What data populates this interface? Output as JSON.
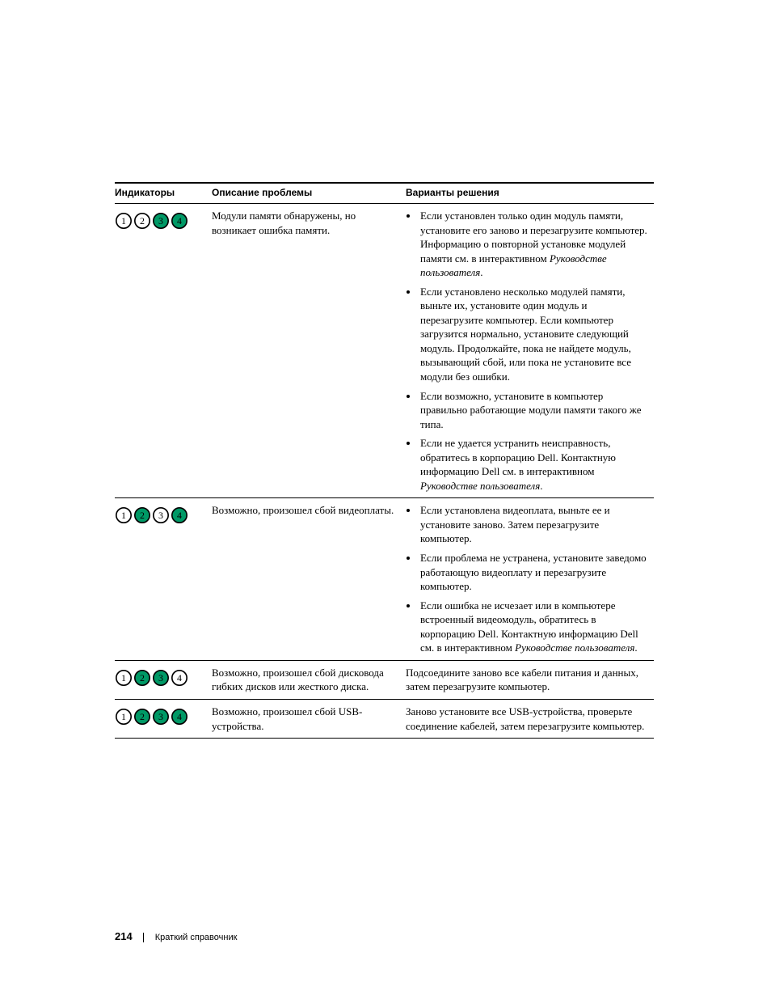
{
  "headers": {
    "indicators": "Индикаторы",
    "description": "Описание проблемы",
    "solutions": "Варианты решения"
  },
  "led_style": {
    "on_fill": "#009966",
    "on_text": "#000000",
    "off_fill": "#ffffff",
    "off_text": "#000000",
    "stroke": "#000000",
    "stroke_width": 1.8,
    "radius": 10,
    "font_family": "Georgia, serif",
    "font_size": 13
  },
  "rows": [
    {
      "leds": [
        false,
        false,
        true,
        true
      ],
      "description": "Модули памяти обнаружены, но возникает ошибка памяти.",
      "solutions": [
        {
          "runs": [
            {
              "t": "Если установлен только один модуль памяти, установите его заново и перезагрузите компьютер. Информацию о повторной установке модулей памяти см. в интерактивном "
            },
            {
              "t": "Руководстве пользователя",
              "i": true
            },
            {
              "t": "."
            }
          ]
        },
        {
          "runs": [
            {
              "t": "Если установлено несколько модулей памяти, выньте их, установите один модуль и перезагрузите компьютер. Если компьютер загрузится нормально, установите следующий модуль. Продолжайте, пока не найдете модуль, вызывающий сбой, или пока не установите все модули без ошибки."
            }
          ]
        },
        {
          "runs": [
            {
              "t": "Если возможно, установите в компьютер правильно работающие модули памяти такого же типа."
            }
          ]
        },
        {
          "runs": [
            {
              "t": "Если не удается устранить неисправность, обратитесь в корпорацию Dell. Контактную информацию Dell см. в интерактивном "
            },
            {
              "t": "Руководстве пользователя",
              "i": true
            },
            {
              "t": "."
            }
          ]
        }
      ]
    },
    {
      "leds": [
        false,
        true,
        false,
        true
      ],
      "description": "Возможно, произошел сбой видеоплаты.",
      "solutions": [
        {
          "runs": [
            {
              "t": "Если установлена видеоплата, выньте ее и установите заново. Затем перезагрузите компьютер."
            }
          ]
        },
        {
          "runs": [
            {
              "t": "Если проблема не устранена, установите заведомо работающую видеоплату и перезагрузите компьютер."
            }
          ]
        },
        {
          "runs": [
            {
              "t": "Если ошибка не исчезает или в компьютере встроенный видеомодуль, обратитесь в корпорацию Dell. Контактную информацию Dell см. в интерактивном "
            },
            {
              "t": "Руководстве пользователя",
              "i": true
            },
            {
              "t": "."
            }
          ]
        }
      ]
    },
    {
      "leds": [
        false,
        true,
        true,
        false
      ],
      "description": "Возможно, произошел сбой дисковода гибких дисков или жесткого диска.",
      "solutions_plain": "Подсоедините заново все кабели питания и данных, затем перезагрузите компьютер."
    },
    {
      "leds": [
        false,
        true,
        true,
        true
      ],
      "description": "Возможно, произошел сбой USB-устройства.",
      "solutions_plain": "Заново установите все USB-устройства, проверьте соединение кабелей, затем перезагрузите компьютер."
    }
  ],
  "footer": {
    "page_number": "214",
    "section": "Краткий справочник"
  }
}
